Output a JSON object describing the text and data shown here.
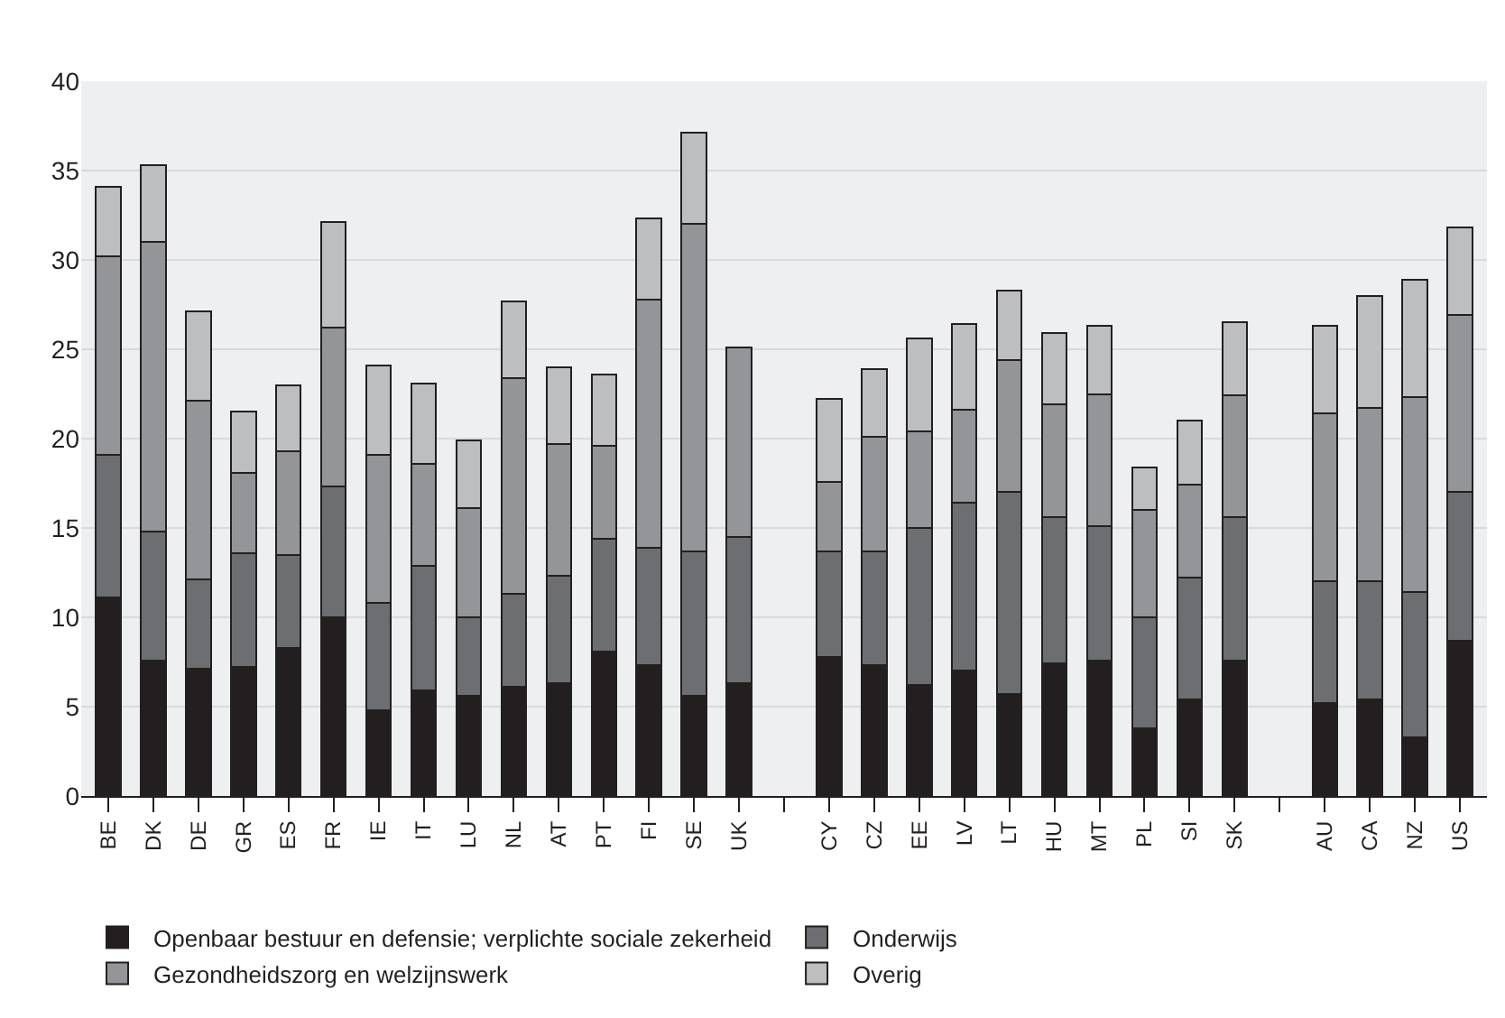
{
  "chart_data": {
    "type": "bar",
    "stacked": true,
    "categories": [
      "BE",
      "DK",
      "DE",
      "GR",
      "ES",
      "FR",
      "IE",
      "IT",
      "LU",
      "NL",
      "AT",
      "PT",
      "FI",
      "SE",
      "UK",
      null,
      "CY",
      "CZ",
      "EE",
      "LV",
      "LT",
      "HU",
      "MT",
      "PL",
      "SI",
      "SK",
      null,
      "AU",
      "CA",
      "NZ",
      "US"
    ],
    "series": [
      {
        "name": "Openbaar bestuur en defensie; verplichte sociale zekerheid",
        "color": "#231f20",
        "values": [
          11.1,
          7.6,
          7.1,
          7.2,
          8.3,
          10.0,
          4.8,
          5.9,
          5.6,
          6.1,
          6.3,
          8.1,
          7.3,
          5.6,
          6.3,
          null,
          7.8,
          7.3,
          6.2,
          7.0,
          5.7,
          7.4,
          7.6,
          3.8,
          5.4,
          7.6,
          null,
          5.2,
          5.4,
          3.3,
          8.7
        ]
      },
      {
        "name": "Onderwijs",
        "color": "#6d6e71",
        "values": [
          8.0,
          7.2,
          5.0,
          6.4,
          5.2,
          7.3,
          6.0,
          7.0,
          4.4,
          5.2,
          6.0,
          6.3,
          6.6,
          8.1,
          8.2,
          null,
          5.9,
          6.4,
          8.8,
          9.4,
          11.3,
          8.2,
          7.5,
          6.2,
          6.8,
          8.0,
          null,
          6.8,
          6.6,
          8.1,
          8.3
        ]
      },
      {
        "name": "Gezondheidszorg en welzijnswerk",
        "color": "#939598",
        "values": [
          11.1,
          16.2,
          10.0,
          4.5,
          5.8,
          8.9,
          8.3,
          5.7,
          6.1,
          12.1,
          7.4,
          5.2,
          13.9,
          18.3,
          10.6,
          null,
          3.9,
          6.4,
          5.4,
          5.2,
          7.4,
          6.3,
          7.4,
          6.0,
          5.2,
          6.8,
          null,
          9.4,
          9.7,
          10.9,
          9.9
        ]
      },
      {
        "name": "Overig",
        "color": "#bcbec0",
        "values": [
          3.9,
          4.3,
          5.0,
          3.4,
          3.7,
          5.9,
          5.0,
          4.5,
          3.8,
          4.3,
          4.3,
          4.0,
          4.5,
          5.1,
          null,
          null,
          4.6,
          3.8,
          5.2,
          4.8,
          3.9,
          4.0,
          3.8,
          2.4,
          3.6,
          4.1,
          null,
          4.9,
          6.3,
          6.6,
          4.9
        ]
      }
    ],
    "ylim": [
      0,
      40
    ],
    "yticks": [
      0,
      5,
      10,
      15,
      20,
      25,
      30,
      35,
      40
    ],
    "grid": "y",
    "legend": "bottom"
  }
}
